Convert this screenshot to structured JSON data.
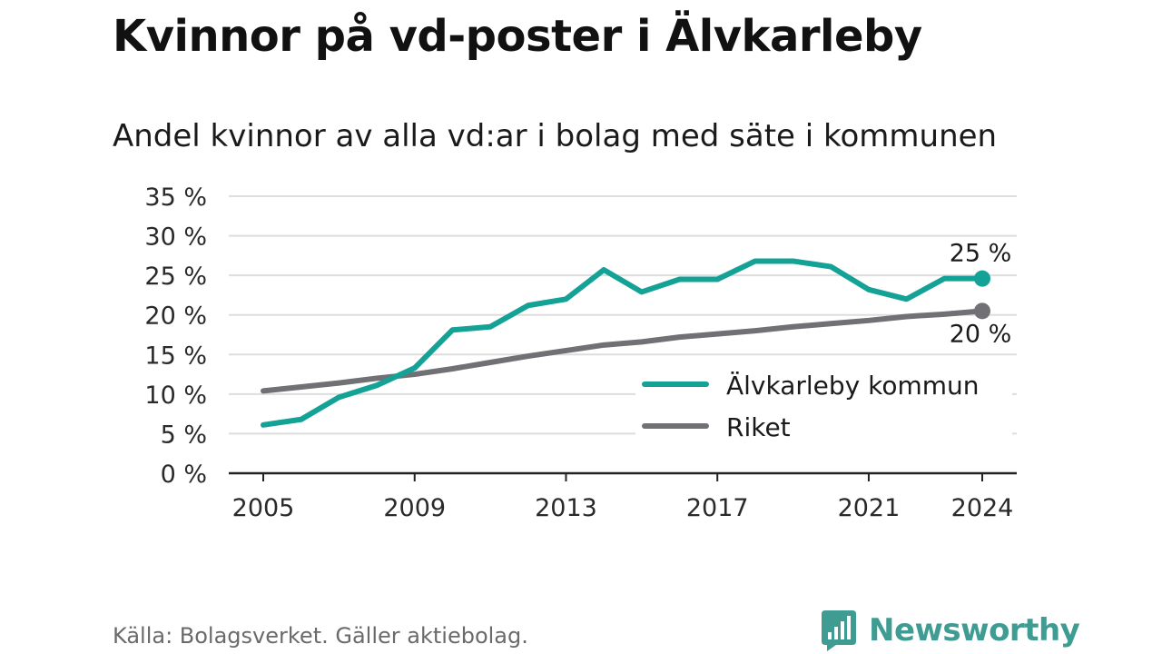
{
  "title": "Kvinnor på vd-poster i Älvkarleby",
  "subtitle": "Andel kvinnor av alla vd:ar i bolag med säte i kommunen",
  "source": "Källa: Bolagsverket. Gäller aktiebolag.",
  "brand": "Newsworthy",
  "colors": {
    "series1": "#14a297",
    "series2": "#707075",
    "grid": "#dddddd",
    "axis": "#222222",
    "brand": "#3f9c93"
  },
  "chart_data": {
    "type": "line",
    "x": [
      2005,
      2006,
      2007,
      2008,
      2009,
      2010,
      2011,
      2012,
      2013,
      2014,
      2015,
      2016,
      2017,
      2018,
      2019,
      2020,
      2021,
      2022,
      2023,
      2024
    ],
    "xlim": [
      2005,
      2024
    ],
    "ylim": [
      0,
      35
    ],
    "x_ticks": [
      2005,
      2009,
      2013,
      2017,
      2021,
      2024
    ],
    "x_tick_labels": [
      "2005",
      "2009",
      "2013",
      "2017",
      "2021",
      "2024"
    ],
    "y_ticks": [
      0,
      5,
      10,
      15,
      20,
      25,
      30,
      35
    ],
    "y_tick_labels": [
      "0 %",
      "5 %",
      "10 %",
      "15 %",
      "20 %",
      "25 %",
      "30 %",
      "35 %"
    ],
    "grid": true,
    "legend_position": "bottom-right",
    "series": [
      {
        "name": "Älvkarleby kommun",
        "color": "#14a297",
        "values": [
          6.1,
          6.8,
          9.6,
          11.1,
          13.3,
          18.1,
          18.5,
          21.2,
          22.0,
          25.7,
          22.9,
          24.5,
          24.5,
          26.8,
          26.8,
          26.1,
          23.2,
          22.0,
          24.6,
          24.6
        ],
        "end_label": "25 %"
      },
      {
        "name": "Riket",
        "color": "#707075",
        "values": [
          10.4,
          10.9,
          11.4,
          12.0,
          12.5,
          13.2,
          14.0,
          14.8,
          15.5,
          16.2,
          16.6,
          17.2,
          17.6,
          18.0,
          18.5,
          18.9,
          19.3,
          19.8,
          20.1,
          20.5
        ],
        "end_label": "20 %"
      }
    ]
  }
}
